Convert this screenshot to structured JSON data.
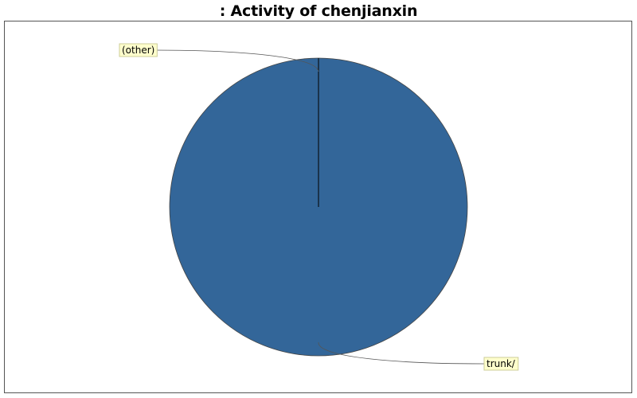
{
  "chart_data": {
    "type": "pie",
    "title": ": Activity of chenjianxin",
    "slices": [
      {
        "label": "(other)",
        "value": 0.0,
        "color": "#336699"
      },
      {
        "label": "trunk/",
        "value": 100.0,
        "color": "#336699"
      }
    ],
    "legend": "none",
    "grid": false
  },
  "colors": {
    "slice": "#336699",
    "label_bg": "#ffffcc",
    "label_border": "#cccc99",
    "leader": "#555555",
    "frame": "#555555"
  }
}
